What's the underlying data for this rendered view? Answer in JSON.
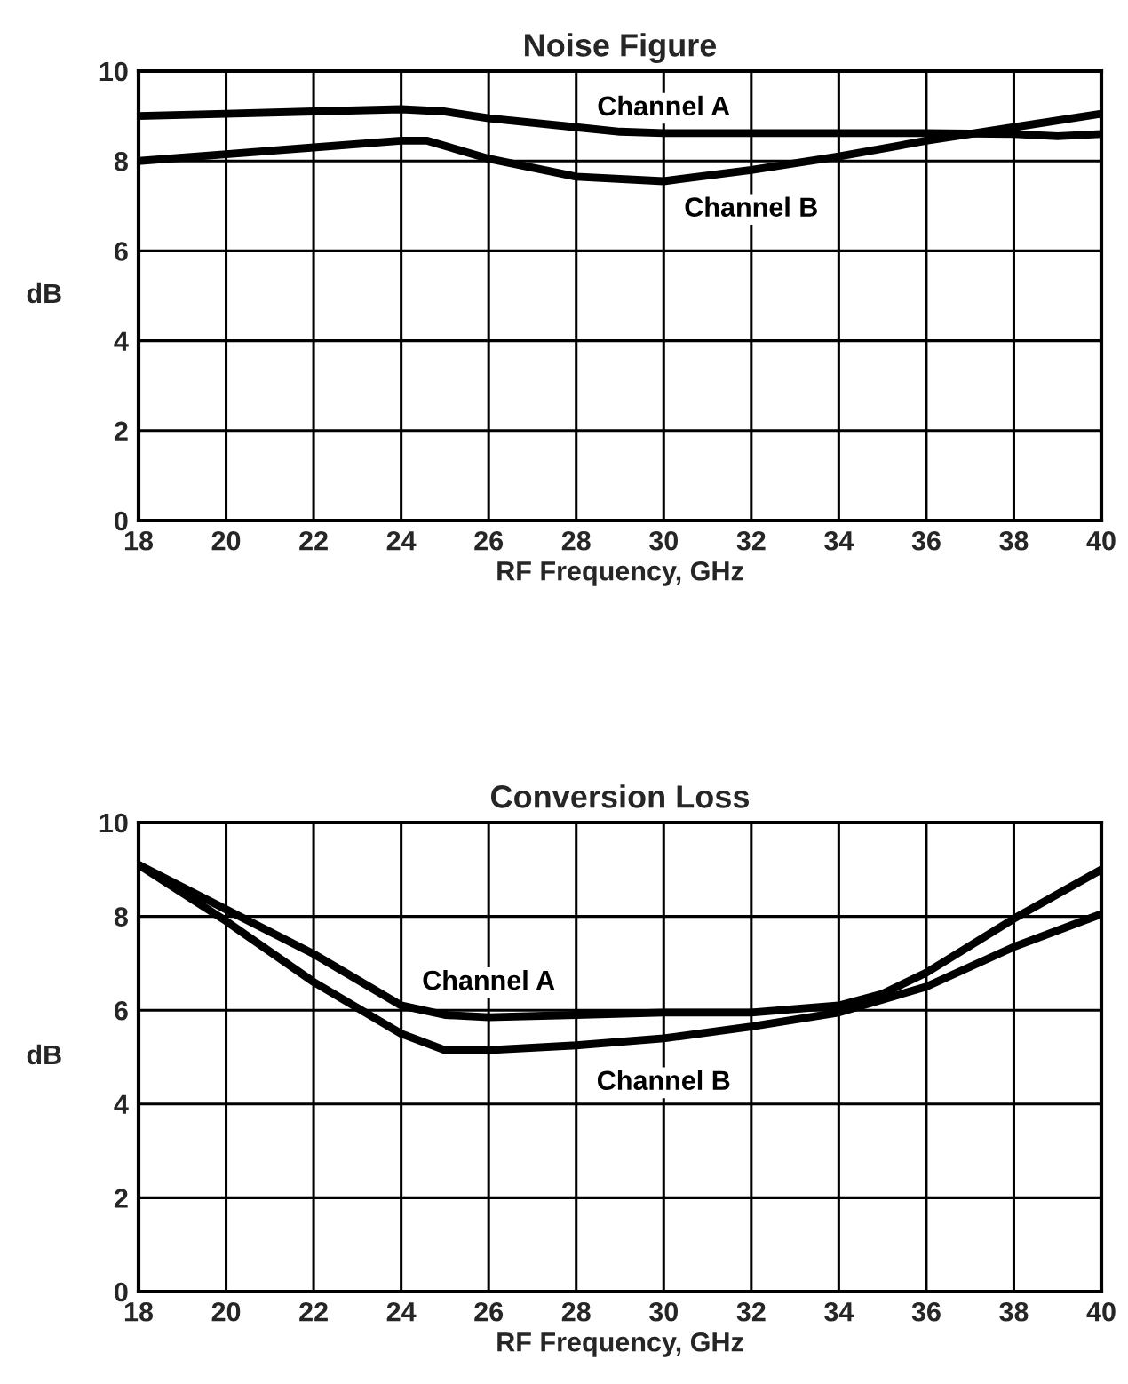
{
  "chart_data": [
    {
      "type": "line",
      "title": "Noise Figure",
      "xlabel": "RF Frequency, GHz",
      "ylabel": "dB",
      "xlim": [
        18,
        40
      ],
      "xticks": [
        18,
        20,
        22,
        24,
        26,
        28,
        30,
        32,
        34,
        36,
        38,
        40
      ],
      "ylim": [
        0,
        10
      ],
      "yticks": [
        0,
        2,
        4,
        6,
        8,
        10
      ],
      "grid": true,
      "legend": false,
      "marker": "none",
      "line_style": "solid",
      "series": [
        {
          "name": "Channel A",
          "color": "#000000",
          "x": [
            18,
            20,
            22,
            24,
            25,
            26,
            28,
            29,
            30,
            32,
            34,
            36,
            38,
            39,
            40
          ],
          "values": [
            9.0,
            9.05,
            9.1,
            9.15,
            9.1,
            8.95,
            8.75,
            8.65,
            8.62,
            8.62,
            8.62,
            8.62,
            8.6,
            8.55,
            8.6
          ]
        },
        {
          "name": "Channel B",
          "color": "#000000",
          "x": [
            18,
            20,
            22,
            24,
            24.6,
            26,
            28,
            30,
            32,
            34,
            36,
            38,
            40
          ],
          "values": [
            8.0,
            8.15,
            8.3,
            8.45,
            8.45,
            8.05,
            7.65,
            7.55,
            7.8,
            8.1,
            8.45,
            8.75,
            9.05
          ]
        }
      ]
    },
    {
      "type": "line",
      "title": "Conversion Loss",
      "xlabel": "RF Frequency, GHz",
      "ylabel": "dB",
      "xlim": [
        18,
        40
      ],
      "xticks": [
        18,
        20,
        22,
        24,
        26,
        28,
        30,
        32,
        34,
        36,
        38,
        40
      ],
      "ylim": [
        0,
        10
      ],
      "yticks": [
        0,
        2,
        4,
        6,
        8,
        10
      ],
      "grid": true,
      "legend": false,
      "marker": "none",
      "line_style": "solid",
      "series": [
        {
          "name": "Channel A",
          "color": "#000000",
          "x": [
            18,
            20,
            22,
            24,
            25,
            26,
            28,
            30,
            32,
            34,
            35,
            36,
            38,
            40
          ],
          "values": [
            9.1,
            8.15,
            7.2,
            6.1,
            5.9,
            5.85,
            5.9,
            5.95,
            5.95,
            6.1,
            6.35,
            6.8,
            7.95,
            9.0
          ]
        },
        {
          "name": "Channel B",
          "color": "#000000",
          "x": [
            18,
            20,
            22,
            24,
            25,
            26,
            28,
            30,
            32,
            34,
            36,
            38,
            40
          ],
          "values": [
            9.1,
            7.9,
            6.6,
            5.5,
            5.15,
            5.15,
            5.25,
            5.4,
            5.65,
            5.95,
            6.5,
            7.35,
            8.05
          ]
        }
      ]
    }
  ]
}
